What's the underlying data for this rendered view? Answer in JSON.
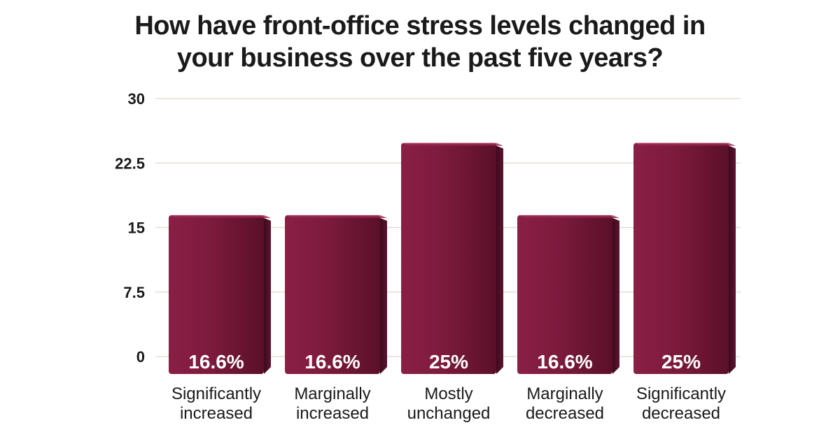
{
  "chart_data": {
    "type": "bar",
    "title_lines": [
      "How have front-office stress levels changed in",
      "your business over the past five years?"
    ],
    "xlabel": "",
    "ylabel": "",
    "ylim": [
      0,
      30
    ],
    "yticks": [
      "0",
      "7.5",
      "15",
      "22.5",
      "30"
    ],
    "ytick_values": [
      0,
      7.5,
      15,
      22.5,
      30
    ],
    "grid": true,
    "categories": [
      [
        "Significantly",
        "increased"
      ],
      [
        "Marginally",
        "increased"
      ],
      [
        "Mostly",
        "unchanged"
      ],
      [
        "Marginally",
        "decreased"
      ],
      [
        "Significantly",
        "decreased"
      ]
    ],
    "values": [
      16.6,
      16.6,
      25,
      16.6,
      25
    ],
    "data_labels": [
      "16.6%",
      "16.6%",
      "25%",
      "16.6%",
      "25%"
    ]
  },
  "colors": {
    "bar": "#7a1a3a",
    "bar_light": "#9a2a52",
    "bar_dark": "#4a0d22",
    "grid": "#e6ddd6"
  }
}
